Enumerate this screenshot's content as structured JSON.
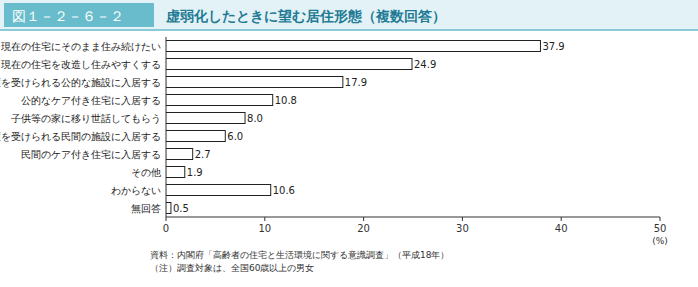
{
  "chart_data": {
    "type": "bar",
    "orientation": "horizontal",
    "figure_number": "図１－２－６－２",
    "title": "虚弱化したときに望む居住形態（複数回答）",
    "categories": [
      "現在の住宅にそのまま住み続けたい",
      "現在の住宅を改造し住みやすくする",
      "介護を受けられる公的な施設に入居する",
      "公的なケア付き住宅に入居する",
      "子供等の家に移り世話してもらう",
      "介護を受けられる民間の施設に入居する",
      "民間のケア付き住宅に入居する",
      "その他",
      "わからない",
      "無回答"
    ],
    "values": [
      37.9,
      24.9,
      17.9,
      10.8,
      8.0,
      6.0,
      2.7,
      1.9,
      10.6,
      0.5
    ],
    "value_labels": [
      "37.9",
      "24.9",
      "17.9",
      "10.8",
      "8.0",
      "6.0",
      "2.7",
      "1.9",
      "10.6",
      "0.5"
    ],
    "data_labels": true,
    "color": "#ffffff",
    "xlim": [
      0,
      50
    ],
    "xticks": [
      0,
      10,
      20,
      30,
      40,
      50
    ],
    "xlabel": "(%)",
    "grid": false,
    "notes": [
      "資料：内閣府「高齢者の住宅と生活環境に関する意識調査」（平成18年）",
      "（注）調査対象は、全国60歳以上の男女"
    ]
  }
}
